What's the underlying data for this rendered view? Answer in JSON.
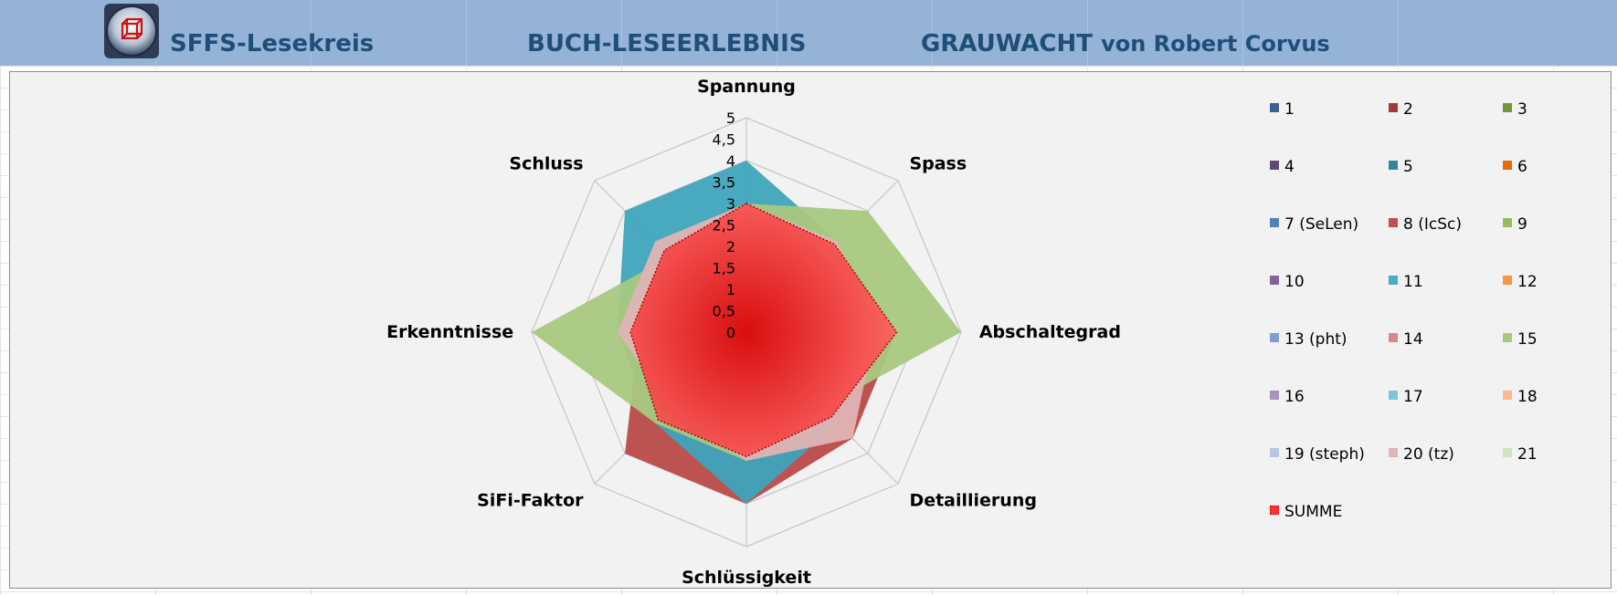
{
  "header": {
    "group_name": "SFFS-Lesekreis",
    "section_title": "BUCH-LESEERLEBNIS",
    "book_title": "GRAUWACHT",
    "author_prefix": "von Robert Corvus"
  },
  "colors": {
    "header_band": "#95b3d7",
    "header_text": "#1f4e79",
    "chart_background": "#f2f2f2",
    "series_2": "#b94a48",
    "series_5": "#3fa4bb",
    "series_15": "#a8c880",
    "series_20": "#e0b4b4",
    "summe": "#ff2a2a"
  },
  "chart_data": {
    "type": "radar",
    "axes": [
      "Spannung",
      "Spass",
      "Abschaltegrad",
      "Detaillierung",
      "Schlüssigkeit",
      "SiFi-Faktor",
      "Erkenntnisse",
      "Schluss"
    ],
    "tick_labels": [
      "0",
      "0,5",
      "1",
      "1,5",
      "2",
      "2,5",
      "3",
      "3,5",
      "4",
      "4,5",
      "5"
    ],
    "range": [
      0,
      5
    ],
    "gridlines": true,
    "legend_position": "right",
    "legend": [
      "1",
      "2",
      "3",
      "4",
      "5",
      "6",
      "7 (SeLen)",
      "8 (IcSc)",
      "9",
      "10",
      "11",
      "12",
      "13 (pht)",
      "14",
      "15",
      "16",
      "17",
      "18",
      "19 (steph)",
      "20 (tz)",
      "21",
      "SUMME"
    ],
    "legend_colors": [
      "#3b5f94",
      "#a33a3a",
      "#77933c",
      "#604a7b",
      "#31859c",
      "#e46c0a",
      "#4f81bd",
      "#c0504d",
      "#9bbb59",
      "#8064a2",
      "#4bacc6",
      "#f79646",
      "#7f9fd0",
      "#d48a88",
      "#a8c880",
      "#a594c0",
      "#7ec3d6",
      "#f9b98a",
      "#b7c6e2",
      "#e0b4b4",
      "#d0e3bd",
      "#ff2a2a"
    ],
    "series": [
      {
        "name": "2",
        "values": [
          3,
          2.5,
          3.5,
          3.5,
          4,
          4,
          2.5,
          2.5
        ],
        "color": "#b94a48"
      },
      {
        "name": "5",
        "values": [
          4,
          3,
          3,
          3,
          4,
          3,
          3,
          4
        ],
        "color": "#3fa4bb"
      },
      {
        "name": "15",
        "values": [
          3,
          4,
          5,
          2.5,
          3,
          3,
          5,
          2.5
        ],
        "color": "#a8c880"
      },
      {
        "name": "20 (tz)",
        "values": [
          3,
          3,
          3,
          3.5,
          3,
          2.5,
          3,
          3
        ],
        "color": "#e0b4b4"
      },
      {
        "name": "SUMME",
        "values": [
          3,
          2.9,
          3.5,
          2.8,
          2.9,
          2.9,
          2.7,
          2.7
        ],
        "color": "#ff2a2a"
      }
    ]
  }
}
